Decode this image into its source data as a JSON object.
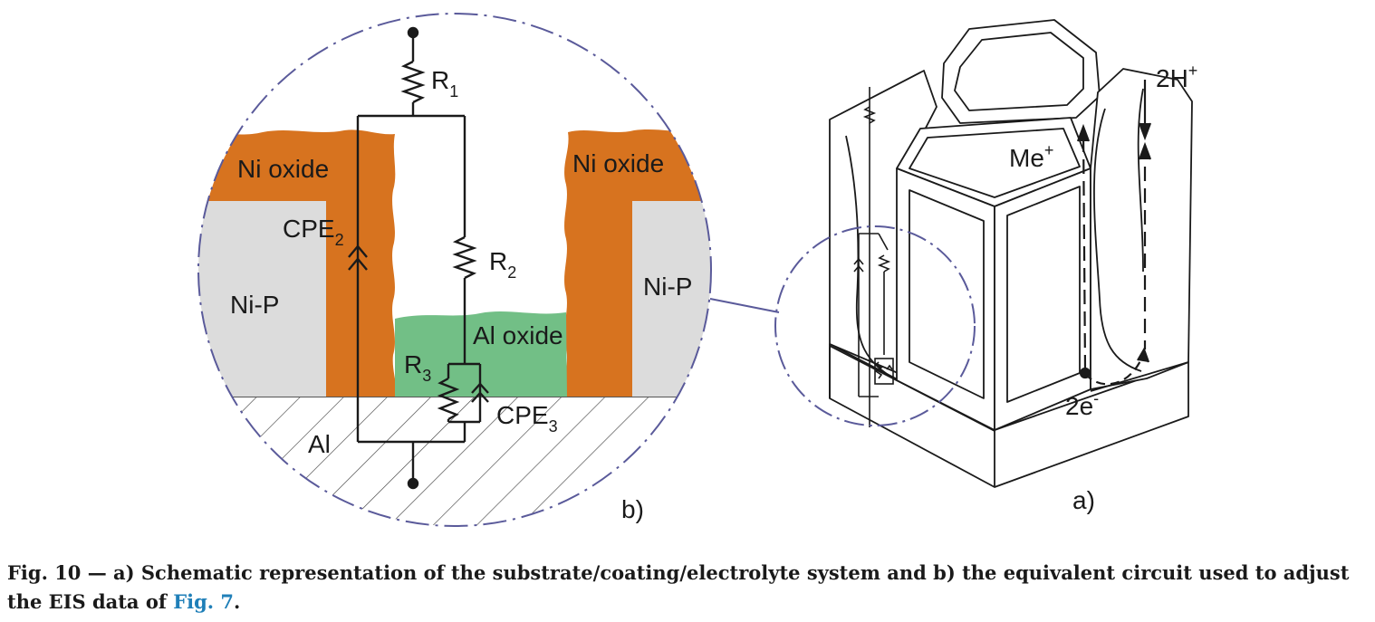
{
  "labels": {
    "r1": "R",
    "r1_sub": "1",
    "r2": "R",
    "r2_sub": "2",
    "r3": "R",
    "r3_sub": "3",
    "cpe2": "CPE",
    "cpe2_sub": "2",
    "cpe3": "CPE",
    "cpe3_sub": "3",
    "ni_oxide_left": "Ni oxide",
    "ni_oxide_right": "Ni oxide",
    "nip_left": "Ni-P",
    "nip_right": "Ni-P",
    "al_oxide": "Al oxide",
    "al": "Al",
    "panel_b": "b)",
    "panel_a": "a)",
    "me": "Me",
    "me_sup": "+",
    "h2": "2H",
    "h2_sup": "+",
    "e2": "2e",
    "e2_sup": "-"
  },
  "colors": {
    "ni_oxide": "#d7731f",
    "nip": "#dcdcdc",
    "al_oxide": "#72bf86",
    "dash_circle": "#5a5a9a",
    "link": "#1f7fb8"
  },
  "caption": {
    "text": "Fig. 10 — a) Schematic representation of the substrate/coating/electrolyte system and b) the equivalent circuit used to adjust the EIS data of ",
    "link": "Fig. 7",
    "end": "."
  }
}
